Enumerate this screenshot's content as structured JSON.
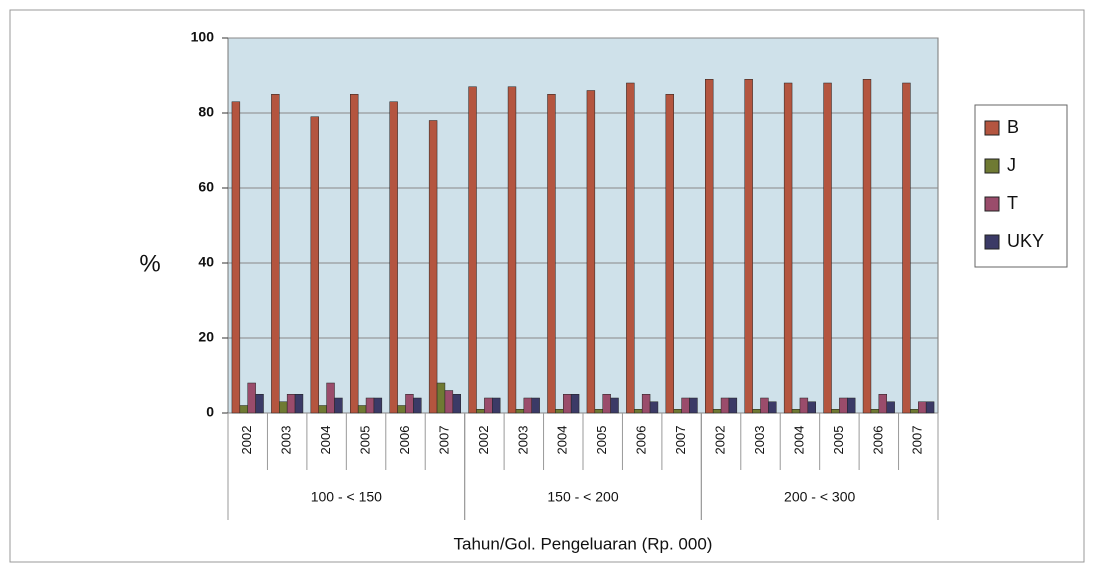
{
  "chart_data": {
    "type": "bar",
    "y_label": "%",
    "x_label": "Tahun/Gol. Pengeluaran (Rp. 000)",
    "categories": [
      "2002",
      "2003",
      "2004",
      "2005",
      "2006",
      "2007",
      "2002",
      "2003",
      "2004",
      "2005",
      "2006",
      "2007",
      "2002",
      "2003",
      "2004",
      "2005",
      "2006",
      "2007"
    ],
    "groups": [
      "100 - < 150",
      "150 - < 200",
      "200 - < 300"
    ],
    "series": [
      {
        "name": "B",
        "color": "#b4553f",
        "values": [
          83,
          85,
          79,
          85,
          83,
          78,
          87,
          87,
          85,
          86,
          88,
          85,
          89,
          89,
          88,
          88,
          89,
          88
        ]
      },
      {
        "name": "J",
        "color": "#6f7a33",
        "values": [
          2,
          3,
          2,
          2,
          2,
          8,
          1,
          1,
          1,
          1,
          1,
          1,
          1,
          1,
          1,
          1,
          1,
          1
        ]
      },
      {
        "name": "T",
        "color": "#9a4c6b",
        "values": [
          8,
          5,
          8,
          4,
          5,
          6,
          4,
          4,
          5,
          5,
          5,
          4,
          4,
          4,
          4,
          4,
          5,
          3
        ]
      },
      {
        "name": "UKY",
        "color": "#3b3a66",
        "values": [
          5,
          5,
          4,
          4,
          4,
          5,
          4,
          4,
          5,
          4,
          3,
          4,
          4,
          3,
          3,
          4,
          3,
          3
        ]
      }
    ],
    "ylim": [
      0,
      100
    ],
    "yticks": [
      0,
      20,
      40,
      60,
      80,
      100
    ],
    "grid": true,
    "legend": "right"
  }
}
